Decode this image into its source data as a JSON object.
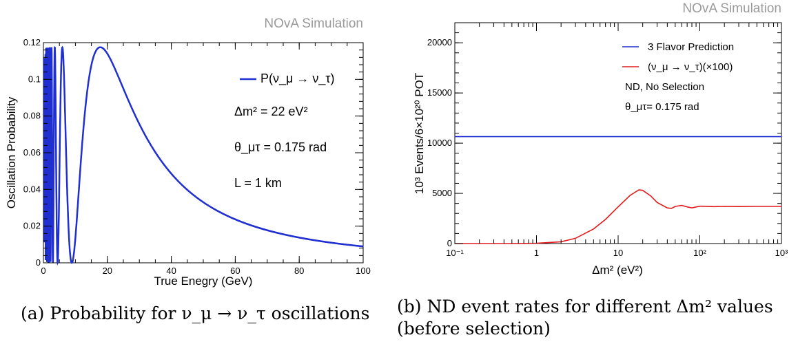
{
  "watermark_a": "NOvA Simulation",
  "watermark_b": "NOvA Simulation",
  "caption_a": "(a) Probability for ν_μ → ν_τ oscillations",
  "caption_b": "(b) ND event rates for different Δm² values (before selection)",
  "chart_data": [
    {
      "type": "line",
      "xlabel": "True Enegry (GeV)",
      "ylabel": "Oscillation Probability",
      "xlim": [
        0,
        100
      ],
      "ylim": [
        0,
        0.12
      ],
      "x_ticks": [
        "0",
        "20",
        "40",
        "60",
        "80",
        "100"
      ],
      "y_ticks": [
        "0",
        "0.02",
        "0.04",
        "0.06",
        "0.08",
        "0.1",
        "0.12"
      ],
      "grid": false,
      "legend_position": "top-right",
      "legend": "P(ν_μ → ν_τ)",
      "annotations": [
        "Δm² = 22 eV²",
        "θ_μτ = 0.175 rad",
        "L = 1 km"
      ],
      "series": [
        {
          "name": "P(ν_μ → ν_τ)",
          "color": "#1f2fd0",
          "formula": "0.1175*sin^2(1.27*22*1/E)",
          "x": [
            0.5,
            1,
            2,
            3,
            5,
            8.8,
            10,
            12,
            15,
            17.7,
            20,
            25,
            30,
            40,
            50,
            60,
            70,
            80,
            90,
            100
          ],
          "y": [
            0.06,
            0.1,
            0.01,
            0.08,
            0.05,
            0.0,
            0.025,
            0.07,
            0.108,
            0.1175,
            0.114,
            0.094,
            0.074,
            0.047,
            0.031,
            0.022,
            0.016,
            0.012,
            0.0098,
            0.008
          ]
        }
      ]
    },
    {
      "type": "line",
      "xlabel": "Δm² (eV²)",
      "ylabel": "10³ Events/6×10²⁰ POT",
      "x_scale": "log",
      "xlim": [
        0.1,
        1000
      ],
      "ylim": [
        0,
        22000
      ],
      "x_ticks": [
        "10⁻¹",
        "1",
        "10",
        "10²",
        "10³"
      ],
      "y_ticks": [
        "0",
        "5000",
        "10000",
        "15000",
        "20000"
      ],
      "grid": false,
      "legend_position": "top-right",
      "legend": [
        "3 Flavor Prediction",
        "(ν_μ → ν_τ)(×100)"
      ],
      "annotations": [
        "ND, No Selection",
        "θ_μτ= 0.175 rad"
      ],
      "series": [
        {
          "name": "3 Flavor Prediction",
          "color": "#1f2fd0",
          "x": [
            0.1,
            1000
          ],
          "y": [
            10650,
            10650
          ]
        },
        {
          "name": "(ν_μ → ν_τ)(×100)",
          "color": "#e31a1c",
          "x": [
            0.1,
            0.5,
            1,
            2,
            3,
            5,
            7,
            10,
            14,
            18,
            20,
            25,
            30,
            40,
            45,
            50,
            60,
            70,
            80,
            100,
            150,
            200,
            300,
            500,
            700,
            1000
          ],
          "y": [
            0,
            0,
            30,
            180,
            520,
            1450,
            2400,
            3650,
            4800,
            5350,
            5300,
            4750,
            4100,
            3550,
            3500,
            3700,
            3800,
            3650,
            3550,
            3720,
            3680,
            3700,
            3690,
            3700,
            3700,
            3700
          ]
        }
      ]
    }
  ]
}
